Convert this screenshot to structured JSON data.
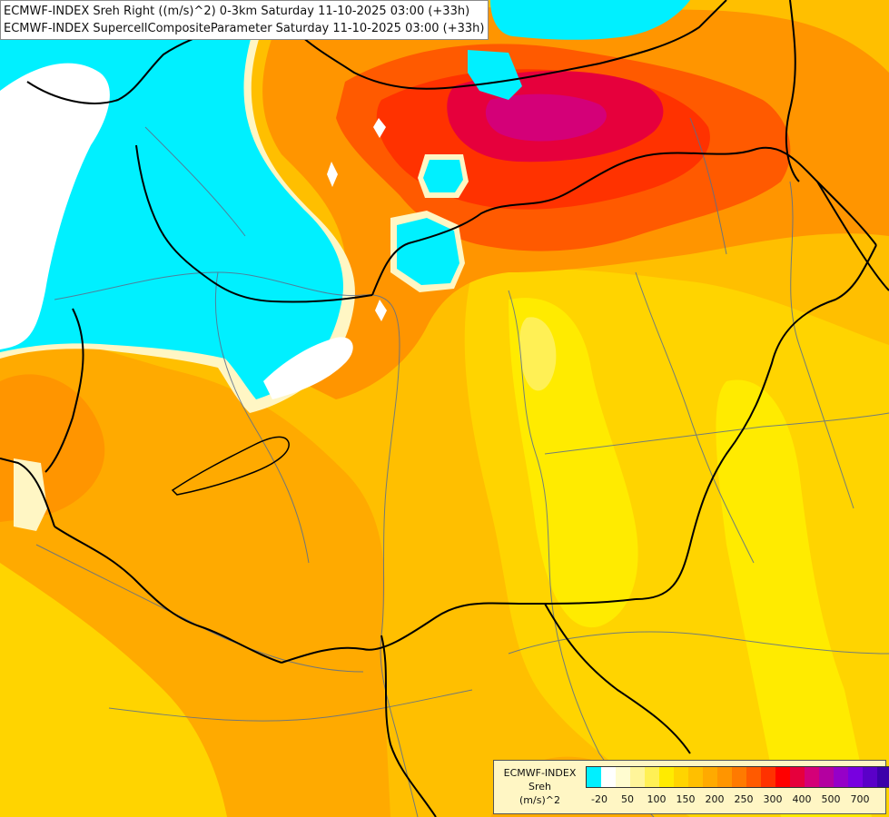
{
  "header": {
    "line1": "ECMWF-INDEX Sreh Right ((m/s)^2) 0-3km Saturday 11-10-2025 03:00 (+33h)",
    "line2": "ECMWF-INDEX SupercellCompositeParameter Saturday 11-10-2025 03:00 (+33h)"
  },
  "legend": {
    "title_lines": [
      "ECMWF-INDEX",
      "Sreh",
      "(m/s)^2"
    ],
    "colors": [
      "#00f0ff",
      "#ffffff",
      "#fffcd0",
      "#fff59a",
      "#fff055",
      "#ffeb00",
      "#ffd400",
      "#ffbf00",
      "#ffaa00",
      "#ff9500",
      "#ff7a00",
      "#ff5a00",
      "#ff3200",
      "#ff0000",
      "#e6003c",
      "#d40078",
      "#b400a0",
      "#9600c8",
      "#7800e0",
      "#5a00c8",
      "#3c00aa",
      "#1e008c"
    ],
    "ticks": [
      "-20",
      "50",
      "100",
      "150",
      "200",
      "250",
      "300",
      "400",
      "500",
      "700"
    ]
  },
  "fill_colors": {
    "cyan": "#00f0ff",
    "white": "#ffffff",
    "pale": "#fff59a",
    "yellow": "#ffeb00",
    "gold": "#ffd400",
    "amber": "#ffbf00",
    "orange": "#ffaa00",
    "dark_orange": "#ff9500",
    "red_orange": "#ff5a00",
    "red": "#ff0000",
    "crimson": "#e6003c"
  },
  "line_colors": {
    "border": "#000000",
    "river": "#5a6e8c"
  }
}
